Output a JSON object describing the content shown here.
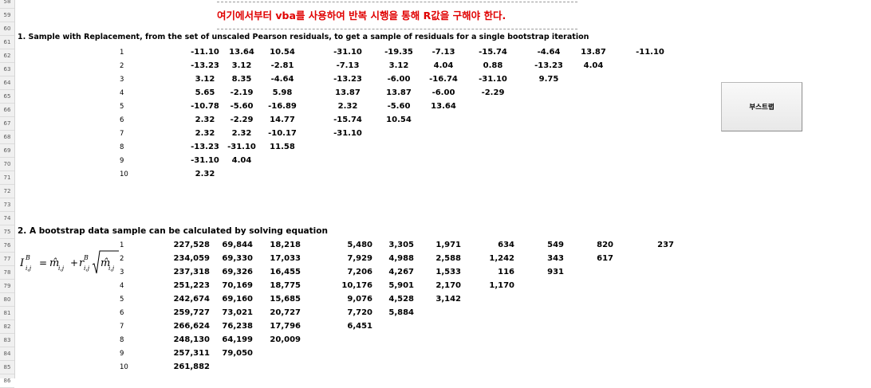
{
  "row_headers": [
    "58",
    "59",
    "60",
    "61",
    "62",
    "63",
    "64",
    "65",
    "66",
    "67",
    "68",
    "69",
    "70",
    "71",
    "72",
    "73",
    "74",
    "75",
    "76",
    "77",
    "78",
    "79",
    "80",
    "81",
    "82",
    "83",
    "84",
    "85",
    "86"
  ],
  "banner_text": "여기에서부터 vba를 사용하여 반복 시행을 통해 R값을 구해야 한다.",
  "section1": {
    "title": "1. Sample with Replacement, from the set of unscaled Pearson residuals, to get a sample of residuals for a single bootstrap iteration",
    "indices": [
      "1",
      "2",
      "3",
      "4",
      "5",
      "6",
      "7",
      "8",
      "9",
      "10"
    ],
    "rows": [
      [
        "-11.10",
        "13.64",
        "10.54",
        "-31.10",
        "-19.35",
        "-7.13",
        "-15.74",
        "-4.64",
        "13.87",
        "-11.10"
      ],
      [
        "-13.23",
        "3.12",
        "-2.81",
        "-7.13",
        "3.12",
        "4.04",
        "0.88",
        "-13.23",
        "4.04"
      ],
      [
        "3.12",
        "8.35",
        "-4.64",
        "-13.23",
        "-6.00",
        "-16.74",
        "-31.10",
        "9.75"
      ],
      [
        "5.65",
        "-2.19",
        "5.98",
        "13.87",
        "13.87",
        "-6.00",
        "-2.29"
      ],
      [
        "-10.78",
        "-5.60",
        "-16.89",
        "2.32",
        "-5.60",
        "13.64"
      ],
      [
        "2.32",
        "-2.29",
        "14.77",
        "-15.74",
        "10.54"
      ],
      [
        "2.32",
        "2.32",
        "-10.17",
        "-31.10"
      ],
      [
        "-13.23",
        "-31.10",
        "11.58"
      ],
      [
        "-31.10",
        "4.04"
      ],
      [
        "2.32"
      ]
    ]
  },
  "button_label": "부스트랩",
  "section2": {
    "title": "2. A bootstrap data sample can be calculated by solving equation",
    "formula": {
      "lhs_base": "I",
      "lhs_sup": "B",
      "lhs_sub": "i,j",
      "eq": "=",
      "m1": "m̂",
      "m1_sub": "i,j",
      "plus": "+",
      "r": "r",
      "r_sup": "B",
      "r_sub": "i,j",
      "m2": "m̂",
      "m2_sub": "i,j"
    },
    "indices": [
      "1",
      "2",
      "3",
      "4",
      "5",
      "6",
      "7",
      "8",
      "9",
      "10"
    ],
    "rows": [
      [
        "227,528",
        "69,844",
        "18,218",
        "5,480",
        "3,305",
        "1,971",
        "634",
        "549",
        "820",
        "237"
      ],
      [
        "234,059",
        "69,330",
        "17,033",
        "7,929",
        "4,988",
        "2,588",
        "1,242",
        "343",
        "617"
      ],
      [
        "237,318",
        "69,326",
        "16,455",
        "7,206",
        "4,267",
        "1,533",
        "116",
        "931"
      ],
      [
        "251,223",
        "70,169",
        "18,775",
        "10,176",
        "5,901",
        "2,170",
        "1,170"
      ],
      [
        "242,674",
        "69,160",
        "15,685",
        "9,076",
        "4,528",
        "3,142"
      ],
      [
        "259,727",
        "73,021",
        "20,727",
        "7,720",
        "5,884"
      ],
      [
        "266,624",
        "76,238",
        "17,796",
        "6,451"
      ],
      [
        "248,130",
        "64,199",
        "20,009"
      ],
      [
        "257,311",
        "79,050"
      ],
      [
        "261,882"
      ]
    ]
  }
}
